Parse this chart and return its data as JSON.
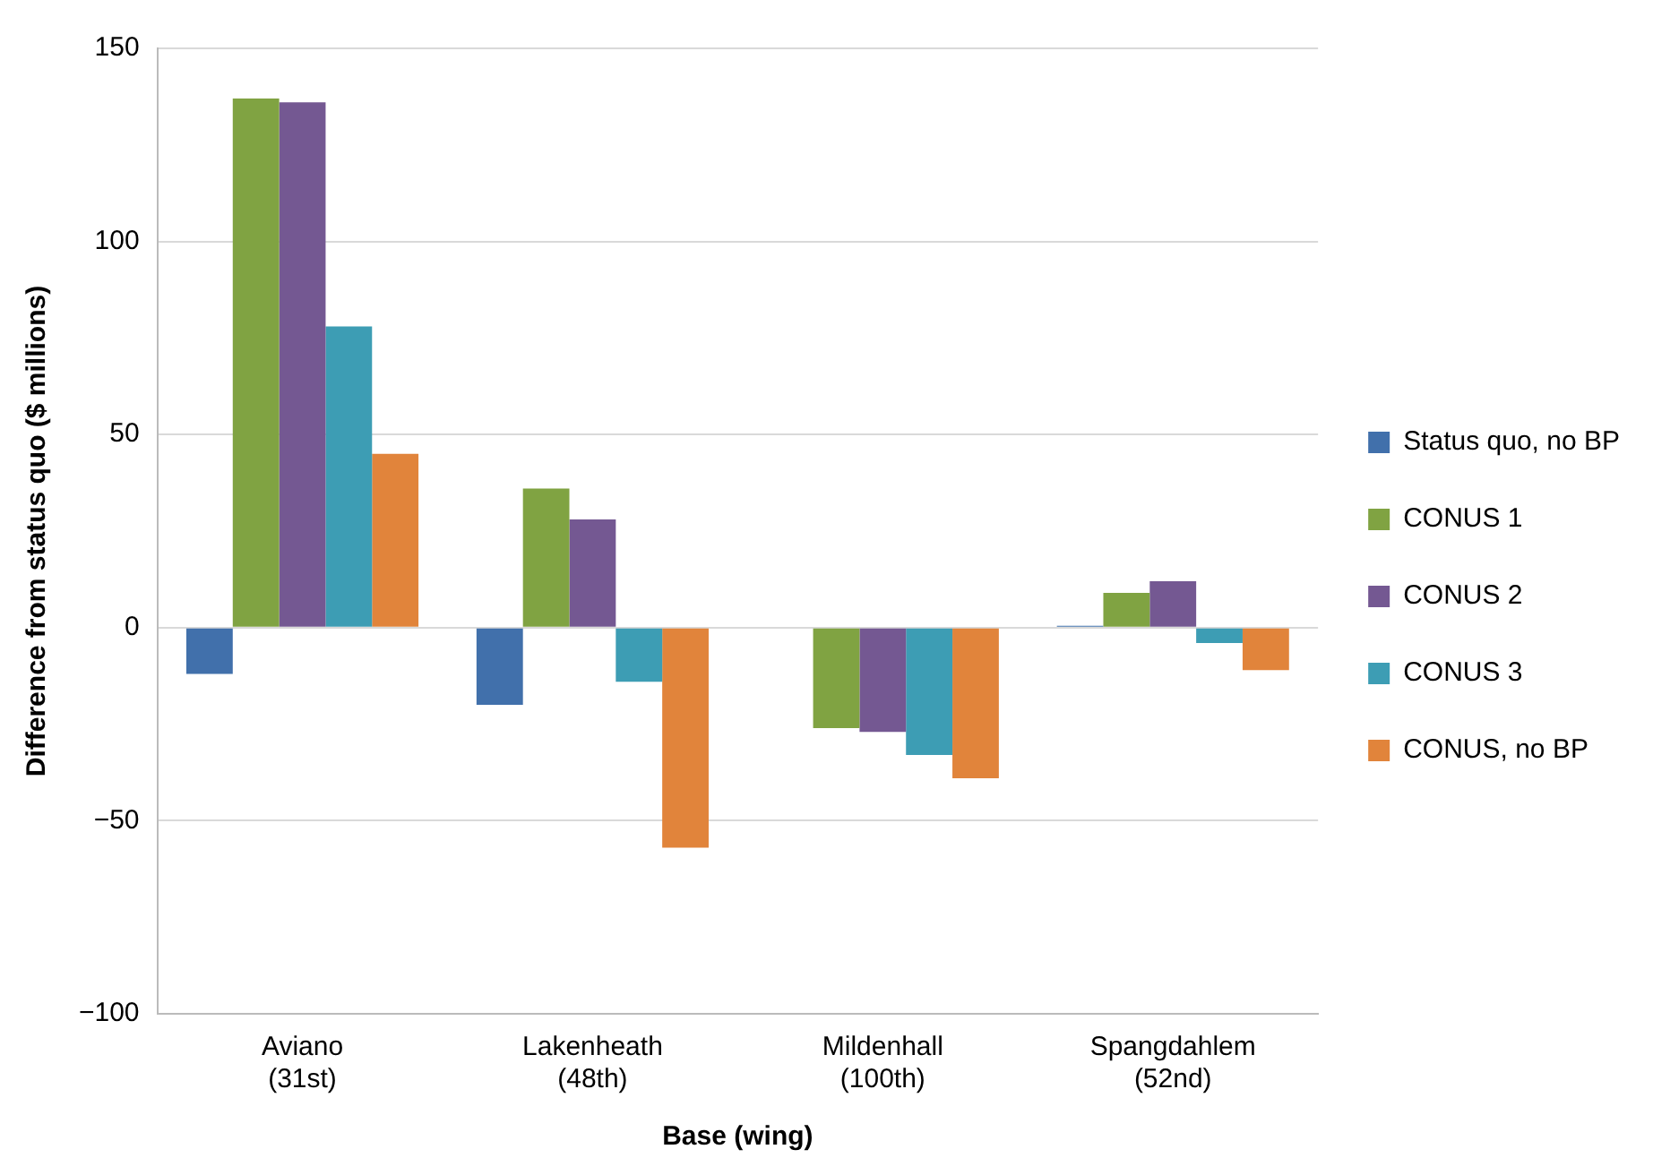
{
  "chart_data": {
    "type": "bar",
    "xlabel": "Base (wing)",
    "ylabel": "Difference from status quo ($ millions)",
    "categories": [
      "Aviano (31st)",
      "Lakenheath (48th)",
      "Mildenhall (100th)",
      "Spangdahlem (52nd)"
    ],
    "series": [
      {
        "name": "Status quo, no BP",
        "color": "#4170ab",
        "values": [
          -12,
          -20,
          0,
          0.5
        ]
      },
      {
        "name": "CONUS 1",
        "color": "#80a342",
        "values": [
          137,
          36,
          -26,
          9
        ]
      },
      {
        "name": "CONUS 2",
        "color": "#745892",
        "values": [
          136,
          28,
          -27,
          12
        ]
      },
      {
        "name": "CONUS 3",
        "color": "#3d9db4",
        "values": [
          78,
          -14,
          -33,
          -4
        ]
      },
      {
        "name": "CONUS, no BP",
        "color": "#e1843b",
        "values": [
          45,
          -57,
          -39,
          -11
        ]
      }
    ],
    "ylim": [
      -100,
      150
    ],
    "yticks": [
      {
        "value": -100,
        "label": "−100"
      },
      {
        "value": -50,
        "label": "−50"
      },
      0,
      50,
      100,
      150
    ],
    "grid": "y",
    "legend": "right"
  }
}
